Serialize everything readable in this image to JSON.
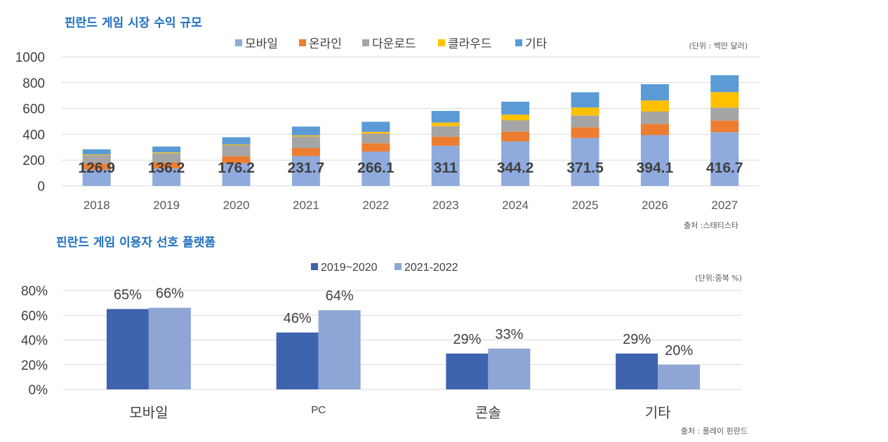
{
  "chart_data": [
    {
      "type": "bar",
      "stacked": true,
      "title": "핀란드 게임 시장 수익 규모",
      "unit_note": "(단위 : 백만 달러)",
      "source_note": "출처 :스태티스타",
      "categories": [
        "2018",
        "2019",
        "2020",
        "2021",
        "2022",
        "2023",
        "2024",
        "2025",
        "2026",
        "2027"
      ],
      "ylim": [
        0,
        1000
      ],
      "yticks": [
        "0",
        "200",
        "400",
        "600",
        "800",
        "1000"
      ],
      "legend_position": "top",
      "series": [
        {
          "name": "모바일",
          "color": "#8faadc",
          "values": [
            126.9,
            136.2,
            176.2,
            231.7,
            266.1,
            311,
            344.2,
            371.5,
            394.1,
            416.7
          ],
          "labels": [
            "126.9",
            "136.2",
            "176.2",
            "231.7",
            "266.1",
            "311",
            "344.2",
            "371.5",
            "394.1",
            "416.7"
          ]
        },
        {
          "name": "온라인",
          "color": "#ed7d31",
          "values": [
            45,
            46,
            54,
            62,
            64,
            70,
            76,
            82,
            86,
            90
          ]
        },
        {
          "name": "다운로드",
          "color": "#a5a5a5",
          "values": [
            67,
            72,
            85,
            90,
            75,
            82,
            88,
            92,
            96,
            100
          ]
        },
        {
          "name": "클라우드",
          "color": "#ffc000",
          "values": [
            5,
            6,
            6,
            8,
            14,
            28,
            44,
            62,
            86,
            120
          ]
        },
        {
          "name": "기타",
          "color": "#5b9bd5",
          "values": [
            40,
            45,
            56,
            68,
            78,
            90,
            100,
            118,
            126,
            131
          ]
        }
      ]
    },
    {
      "type": "bar",
      "title": "핀란드 게임 이용자 선호 플랫폼",
      "unit_note": "(단위:중복 %)",
      "source_note": "출처 : 플레이 핀란드",
      "categories": [
        "모바일",
        "PC",
        "콘솔",
        "기타"
      ],
      "ylim": [
        0,
        80
      ],
      "yticks": [
        "0%",
        "20%",
        "40%",
        "60%",
        "80%"
      ],
      "legend_position": "top",
      "series": [
        {
          "name": "2019~2020",
          "color": "#3e64ad",
          "values": [
            65,
            46,
            29,
            29
          ],
          "labels": [
            "65%",
            "46%",
            "29%",
            "29%"
          ]
        },
        {
          "name": "2021-2022",
          "color": "#8ea5d6",
          "values": [
            66,
            64,
            33,
            20
          ],
          "labels": [
            "66%",
            "64%",
            "33%",
            "20%"
          ]
        }
      ]
    }
  ]
}
